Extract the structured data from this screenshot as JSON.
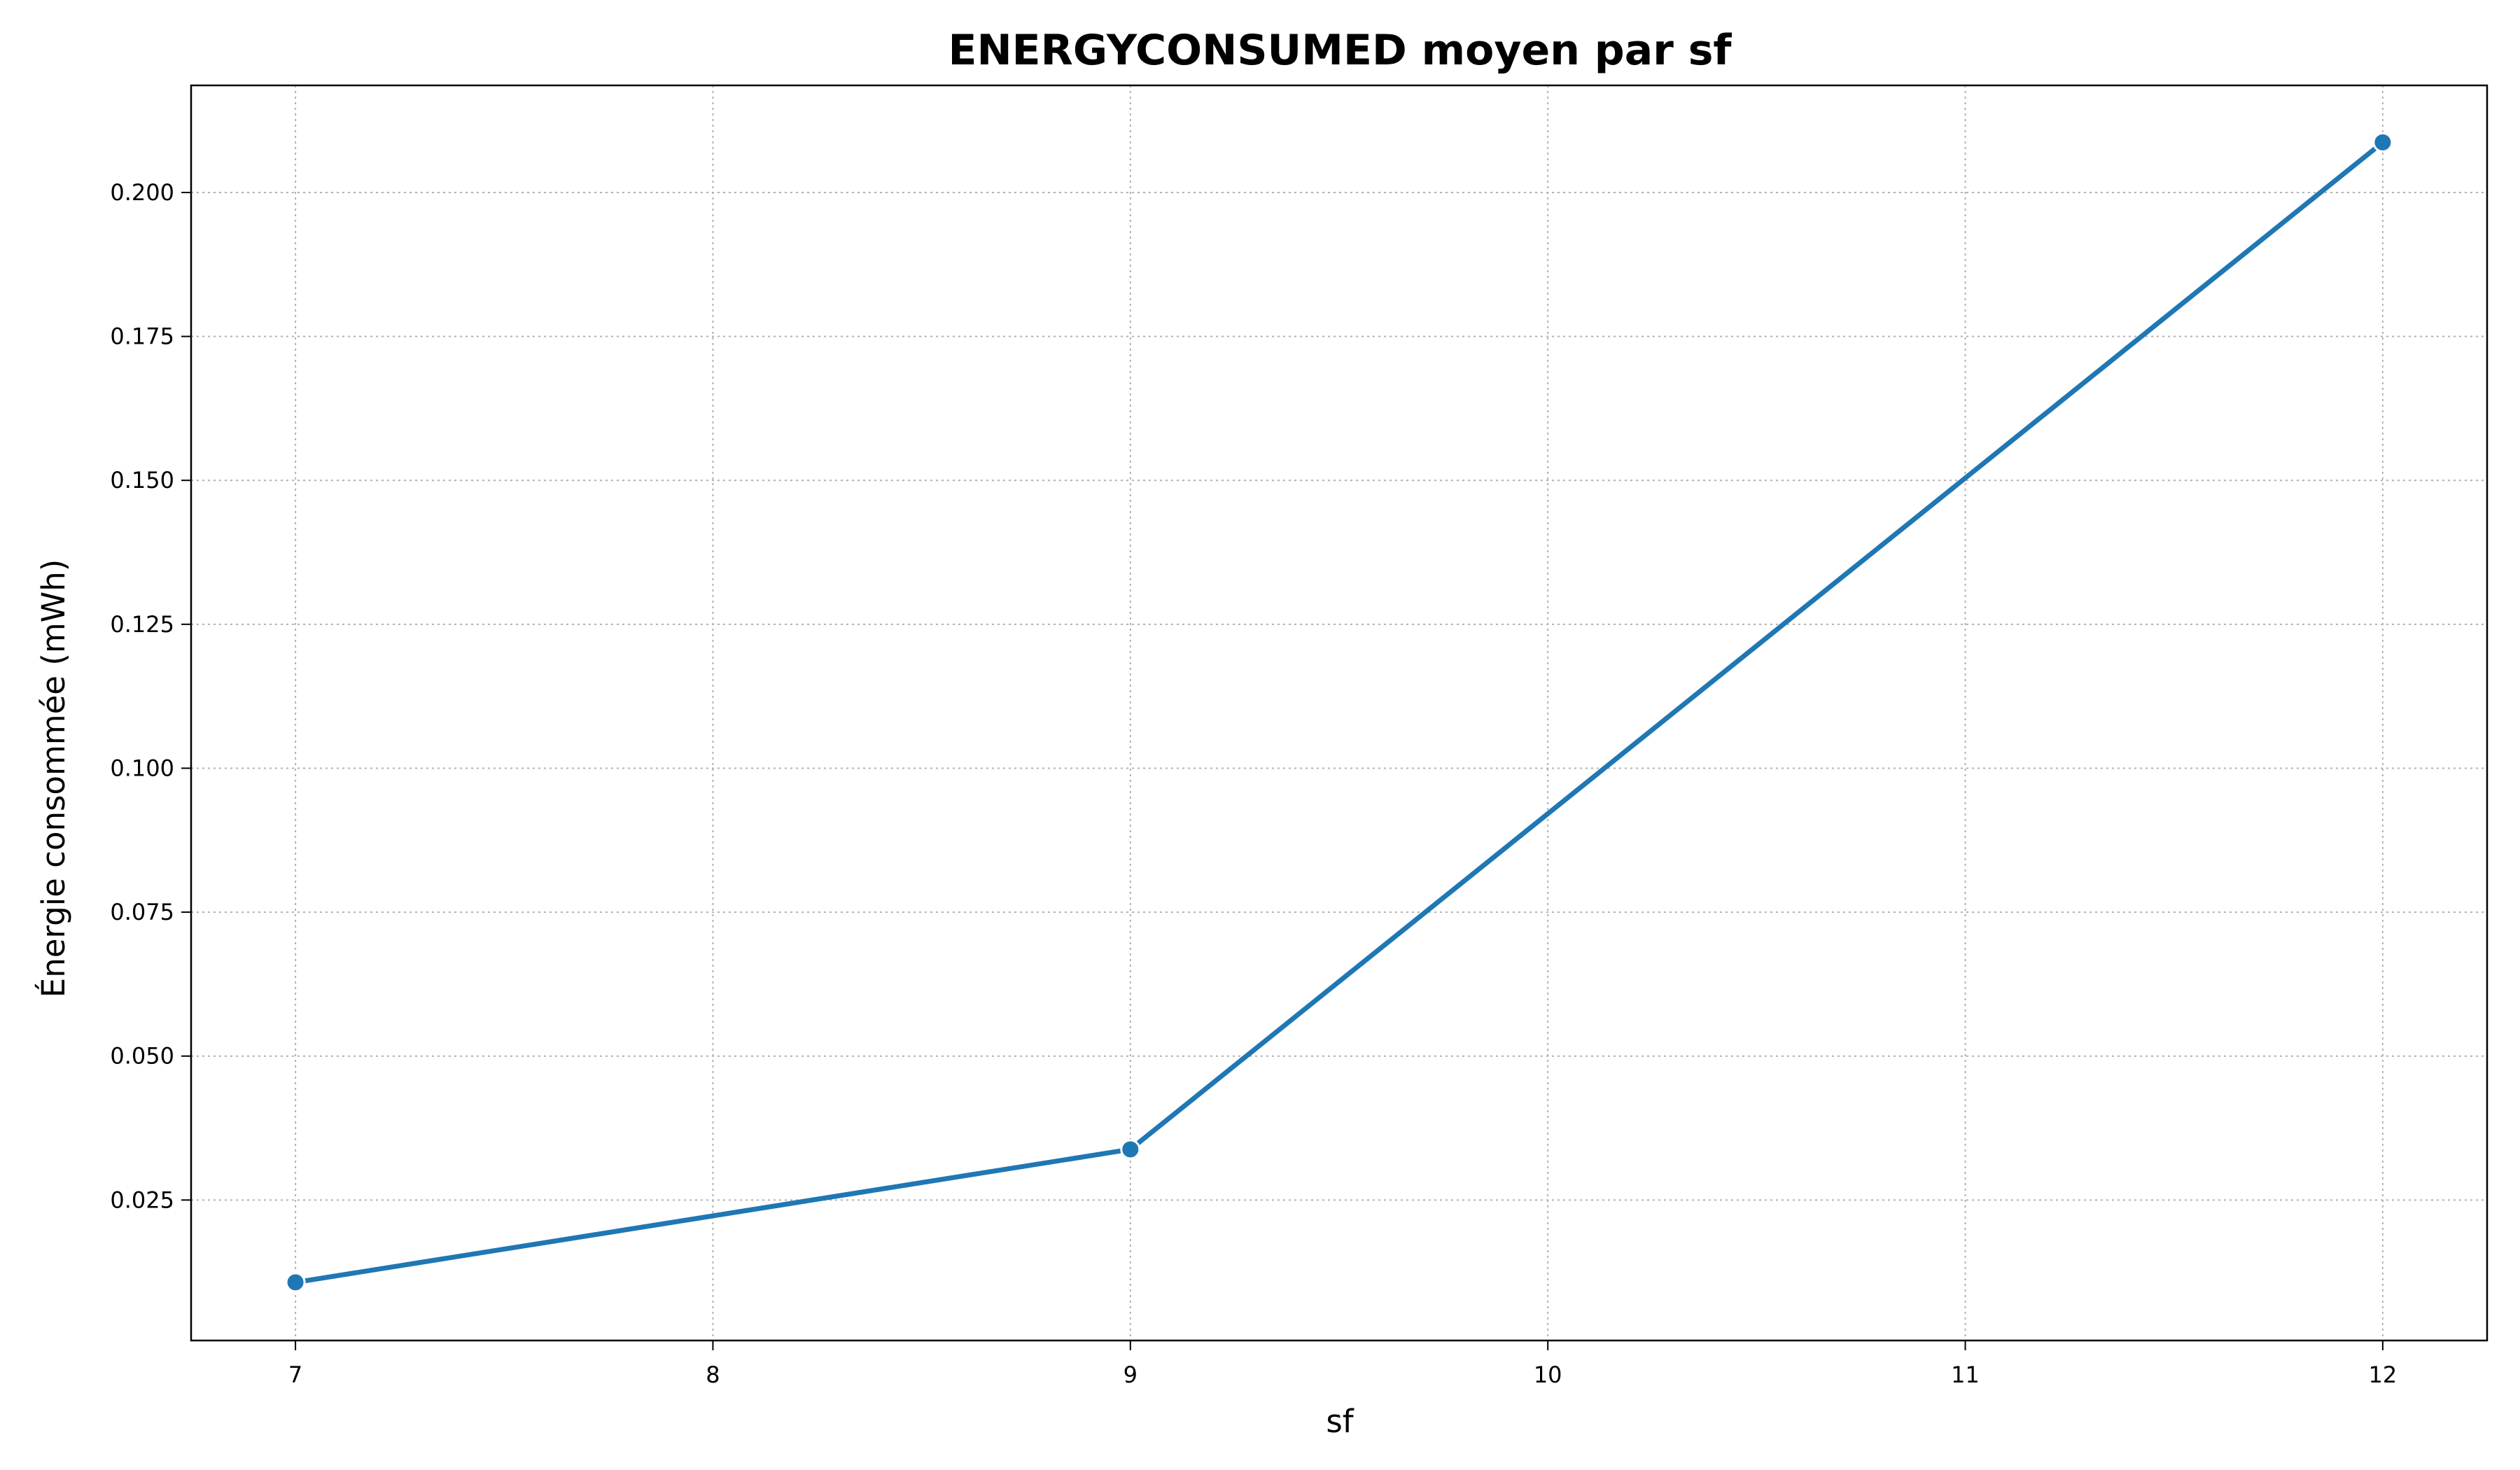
{
  "chart_data": {
    "type": "line",
    "title": "ENERGYCONSUMED moyen par sf",
    "xlabel": "sf",
    "ylabel": "Énergie consommée (mWh)",
    "x": [
      7,
      9,
      12
    ],
    "series": [
      {
        "values": [
          0.0107,
          0.0338,
          0.2087
        ],
        "color": "#1f77b4"
      }
    ],
    "xlim": [
      6.75,
      12.25
    ],
    "ylim": [
      0.0006,
      0.2186
    ],
    "xticks": [
      7,
      8,
      9,
      10,
      11,
      12
    ],
    "xtick_labels": [
      "7",
      "8",
      "9",
      "10",
      "11",
      "12"
    ],
    "yticks": [
      0.025,
      0.05,
      0.075,
      0.1,
      0.125,
      0.15,
      0.175,
      0.2
    ],
    "ytick_labels": [
      "0.025",
      "0.050",
      "0.075",
      "0.100",
      "0.125",
      "0.150",
      "0.175",
      "0.200"
    ],
    "grid": true,
    "marker": "circle"
  }
}
